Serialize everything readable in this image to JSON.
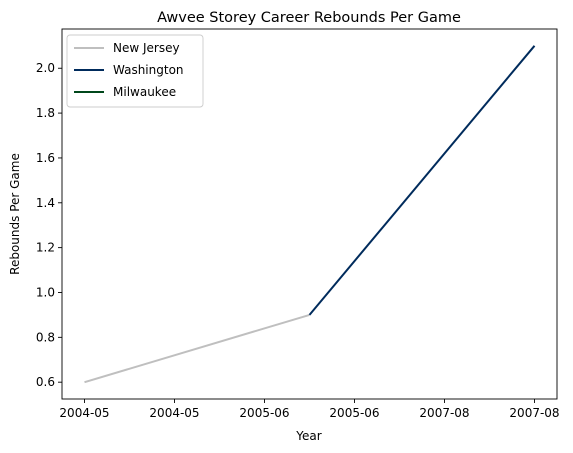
{
  "chart_data": {
    "type": "line",
    "title": "Awvee Storey Career Rebounds Per Game",
    "xlabel": "Year",
    "ylabel": "Rebounds Per Game",
    "x_tick_labels": [
      "2004-05",
      "2004-05",
      "2005-06",
      "2005-06",
      "2007-08",
      "2007-08"
    ],
    "y_tick_labels": [
      "0.6",
      "0.8",
      "1.0",
      "1.2",
      "1.4",
      "1.6",
      "1.8",
      "2.0"
    ],
    "y_ticks": [
      0.6,
      0.8,
      1.0,
      1.2,
      1.4,
      1.6,
      1.8,
      2.0
    ],
    "xlim": [
      -0.1,
      2.1
    ],
    "ylim": [
      0.525,
      2.175
    ],
    "grid": false,
    "legend_position": "top-left",
    "series": [
      {
        "name": "New Jersey",
        "color": "#BFBFBF",
        "x": [
          0,
          1
        ],
        "y": [
          0.6,
          0.9
        ]
      },
      {
        "name": "Washington",
        "color": "#002B5C",
        "x": [
          1,
          2
        ],
        "y": [
          0.9,
          2.1
        ]
      },
      {
        "name": "Milwaukee",
        "color": "#00471B",
        "x": [],
        "y": []
      }
    ]
  }
}
